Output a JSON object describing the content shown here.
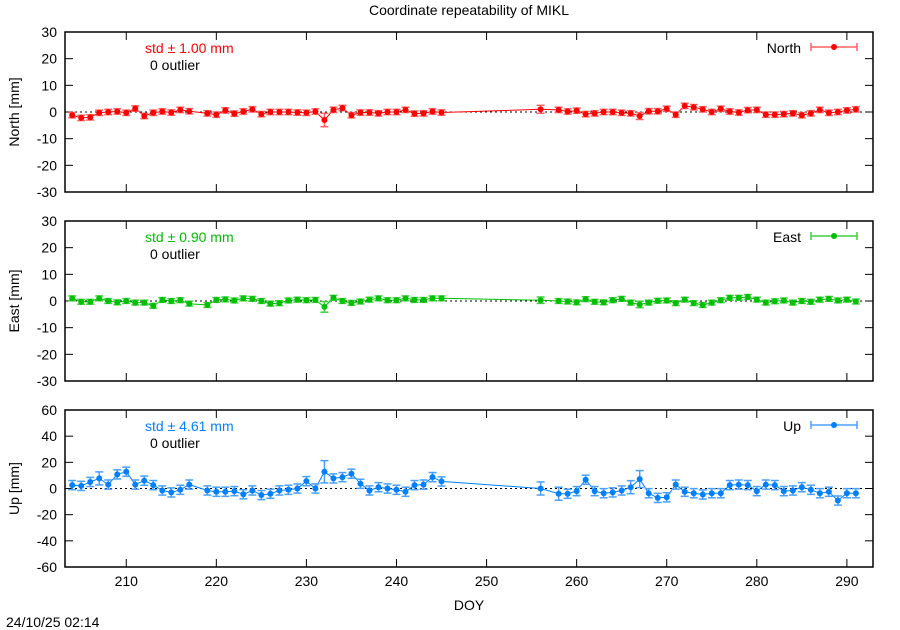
{
  "title": "Coordinate repeatability of MIKL",
  "timestamp": "24/10/25 02:14",
  "chart_data": [
    {
      "type": "line",
      "panel": "north",
      "ylabel": "North [mm]",
      "series_name": "North",
      "color": "#ff0000",
      "errcolor": "#ff6060",
      "std_text": "std ± 1.00 mm",
      "outlier_text": "0 outlier",
      "ylim": [
        -30,
        30
      ],
      "yticks": [
        -30,
        -20,
        -10,
        0,
        10,
        20,
        30
      ],
      "xlim": [
        203.2,
        292.9
      ],
      "x": [
        204,
        205,
        206,
        207,
        208,
        209,
        210,
        211,
        212,
        213,
        214,
        215,
        216,
        217,
        219,
        220,
        221,
        222,
        223,
        224,
        225,
        226,
        227,
        228,
        229,
        230,
        231,
        232,
        233,
        234,
        235,
        236,
        237,
        238,
        239,
        240,
        241,
        242,
        243,
        244,
        245,
        256,
        258,
        259,
        260,
        261,
        262,
        263,
        264,
        265,
        266,
        267,
        268,
        269,
        270,
        271,
        272,
        273,
        274,
        275,
        276,
        277,
        278,
        279,
        280,
        281,
        282,
        283,
        284,
        285,
        286,
        287,
        288,
        289,
        290,
        291
      ],
      "y": [
        -1.2,
        -2.2,
        -2.0,
        -0.3,
        0,
        0.2,
        -0.3,
        1.3,
        -1.5,
        -0.3,
        0.2,
        -0.2,
        0.8,
        0.3,
        -0.5,
        -1.0,
        0.6,
        -0.6,
        0.2,
        1.0,
        -0.8,
        0,
        0,
        0,
        -0.2,
        -0.3,
        0.2,
        -3.0,
        0.8,
        1.5,
        -1.2,
        -0.2,
        -0.2,
        -0.5,
        0,
        0,
        0.8,
        -0.6,
        -0.5,
        0.2,
        -0.2,
        1.0,
        0.8,
        0.2,
        0.5,
        -0.8,
        -0.5,
        0,
        0,
        -0.3,
        -0.5,
        -1.5,
        0.3,
        0.3,
        1.2,
        -1.0,
        2.3,
        1.8,
        1.0,
        0,
        1.2,
        0.2,
        -0.2,
        0.7,
        0.8,
        -1.0,
        -1.0,
        -0.8,
        -0.5,
        -1.2,
        -0.5,
        0.8,
        -0.3,
        0,
        0.6,
        1.0
      ],
      "yerr_default": 1.0,
      "yerr_overrides": {
        "232": 2.5,
        "256": 1.5,
        "267": 1.3
      }
    },
    {
      "type": "line",
      "panel": "east",
      "ylabel": "East [mm]",
      "series_name": "East",
      "color": "#00c000",
      "errcolor": "#40d040",
      "std_text": "std ± 0.90 mm",
      "outlier_text": "0 outlier",
      "ylim": [
        -30,
        30
      ],
      "yticks": [
        -30,
        -20,
        -10,
        0,
        10,
        20,
        30
      ],
      "xlim": [
        203.2,
        292.9
      ],
      "x": [
        204,
        205,
        206,
        207,
        208,
        209,
        210,
        211,
        212,
        213,
        214,
        215,
        216,
        217,
        219,
        220,
        221,
        222,
        223,
        224,
        225,
        226,
        227,
        228,
        229,
        230,
        231,
        232,
        233,
        234,
        235,
        236,
        237,
        238,
        239,
        240,
        241,
        242,
        243,
        244,
        245,
        256,
        258,
        259,
        260,
        261,
        262,
        263,
        264,
        265,
        266,
        267,
        268,
        269,
        270,
        271,
        272,
        273,
        274,
        275,
        276,
        277,
        278,
        279,
        280,
        281,
        282,
        283,
        284,
        285,
        286,
        287,
        288,
        289,
        290,
        291
      ],
      "y": [
        1.0,
        -0.3,
        -0.3,
        1.0,
        0,
        -0.5,
        0,
        -0.6,
        -0.6,
        -1.8,
        0.4,
        0,
        0.3,
        -1.0,
        -1.5,
        0.4,
        0.6,
        0.2,
        1.0,
        0.8,
        0,
        -1.0,
        -0.8,
        0.2,
        0.5,
        0.3,
        0.4,
        -2.2,
        1.2,
        0,
        -0.7,
        -0.2,
        0.5,
        1.0,
        0.3,
        0.3,
        1.0,
        0.4,
        0.4,
        1.0,
        1.0,
        0.3,
        0,
        -0.2,
        -0.5,
        0.7,
        -0.3,
        -0.5,
        0.3,
        0.8,
        -0.6,
        -1.3,
        -0.6,
        0.1,
        0.2,
        -0.8,
        0.5,
        -0.8,
        -1.5,
        -0.6,
        0.3,
        1.2,
        1.2,
        1.5,
        0.5,
        -0.6,
        -0.1,
        0.2,
        -0.6,
        0,
        -0.3,
        0.5,
        0.8,
        0.2,
        0.5,
        -0.2
      ],
      "yerr_default": 0.9,
      "yerr_overrides": {
        "232": 2.0,
        "256": 1.2,
        "267": 1.2
      }
    },
    {
      "type": "line",
      "panel": "up",
      "ylabel": "Up [mm]",
      "xlabel": "DOY",
      "series_name": "Up",
      "color": "#0080ff",
      "errcolor": "#4aa0ff",
      "std_text": "std ± 4.61 mm",
      "outlier_text": "0 outlier",
      "ylim": [
        -60,
        60
      ],
      "yticks": [
        -60,
        -40,
        -20,
        0,
        20,
        40,
        60
      ],
      "xlim": [
        203.2,
        292.9
      ],
      "xticks": [
        210,
        220,
        230,
        240,
        250,
        260,
        270,
        280,
        290
      ],
      "x": [
        204,
        205,
        206,
        207,
        208,
        209,
        210,
        211,
        212,
        213,
        214,
        215,
        216,
        217,
        219,
        220,
        221,
        222,
        223,
        224,
        225,
        226,
        227,
        228,
        229,
        230,
        231,
        232,
        233,
        234,
        235,
        236,
        237,
        238,
        239,
        240,
        241,
        242,
        243,
        244,
        245,
        256,
        258,
        259,
        260,
        261,
        262,
        263,
        264,
        265,
        266,
        267,
        268,
        269,
        270,
        271,
        272,
        273,
        274,
        275,
        276,
        277,
        278,
        279,
        280,
        281,
        282,
        283,
        284,
        285,
        286,
        287,
        288,
        289,
        290,
        291
      ],
      "y": [
        2.6,
        2,
        5,
        7.7,
        3,
        10.8,
        12.8,
        3,
        6,
        2.6,
        -1.5,
        -3,
        -1,
        3,
        -1.5,
        -2.5,
        -2.5,
        -2,
        -4.4,
        -1.5,
        -5,
        -4,
        -1.5,
        -1,
        0,
        5.6,
        0,
        12.8,
        7.7,
        8.7,
        11.3,
        3.6,
        -1.5,
        1,
        0,
        -1,
        -2.5,
        2.6,
        3,
        8.7,
        5.4,
        0,
        -4,
        -4,
        -2,
        6.7,
        -2,
        -3.6,
        -3,
        -1.5,
        1,
        7.2,
        -3.6,
        -7.2,
        -6.7,
        3,
        -2.5,
        -3.6,
        -4.6,
        -3.6,
        -3.6,
        2.6,
        3,
        2.6,
        -2,
        3,
        2.6,
        -2,
        -1.5,
        1,
        -1,
        -3.6,
        -2.5,
        -9.2,
        -3.6,
        -3.6
      ],
      "yerr_default": 3.5,
      "yerr_overrides": {
        "207": 5,
        "232": 8.5,
        "256": 5,
        "258": 5,
        "266": 5,
        "267": 6.5
      }
    }
  ]
}
